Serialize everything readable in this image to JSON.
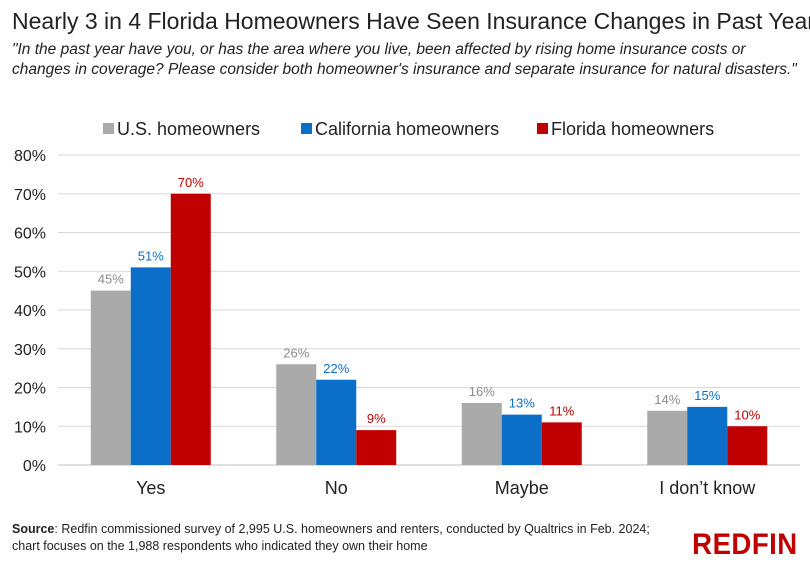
{
  "chart_data": {
    "type": "bar",
    "title": "Nearly 3 in 4 Florida Homeowners Have Seen Insurance Changes in Past Year",
    "subtitle": "\"In the past year have you, or has the area where you live, been affected by rising home insurance costs or changes in coverage? Please consider both homeowner's insurance and separate insurance for natural disasters.\"",
    "categories": [
      "Yes",
      "No",
      "Maybe",
      "I don’t know"
    ],
    "series": [
      {
        "name": "U.S. homeowners",
        "values": [
          45,
          26,
          16,
          14
        ],
        "labels": [
          "45%",
          "26%",
          "16%",
          "14%"
        ],
        "color": "#aaaaaa",
        "label_color": "#8c8c8c"
      },
      {
        "name": "California homeowners",
        "values": [
          51,
          22,
          13,
          15
        ],
        "labels": [
          "51%",
          "22%",
          "13%",
          "15%"
        ],
        "color": "#0b6fc9",
        "label_color": "#0b6fc9"
      },
      {
        "name": "Florida homeowners",
        "values": [
          70,
          9,
          11,
          10
        ],
        "labels": [
          "70%",
          "9%",
          "11%",
          "10%"
        ],
        "color": "#c00000",
        "label_color": "#c00000"
      }
    ],
    "yticks": [
      "0%",
      "10%",
      "20%",
      "30%",
      "40%",
      "50%",
      "60%",
      "70%",
      "80%"
    ],
    "ylim": [
      0,
      80
    ],
    "grid": true,
    "legend_position": "top"
  },
  "footer": {
    "source_label": "Source",
    "source_text": ": Redfin commissioned survey of 2,995 U.S. homeowners and renters, conducted by Qualtrics in Feb. 2024; chart focuses on the 1,988 respondents who indicated they own their home"
  },
  "logo": {
    "text": "REDFIN",
    "color": "#c00000"
  }
}
